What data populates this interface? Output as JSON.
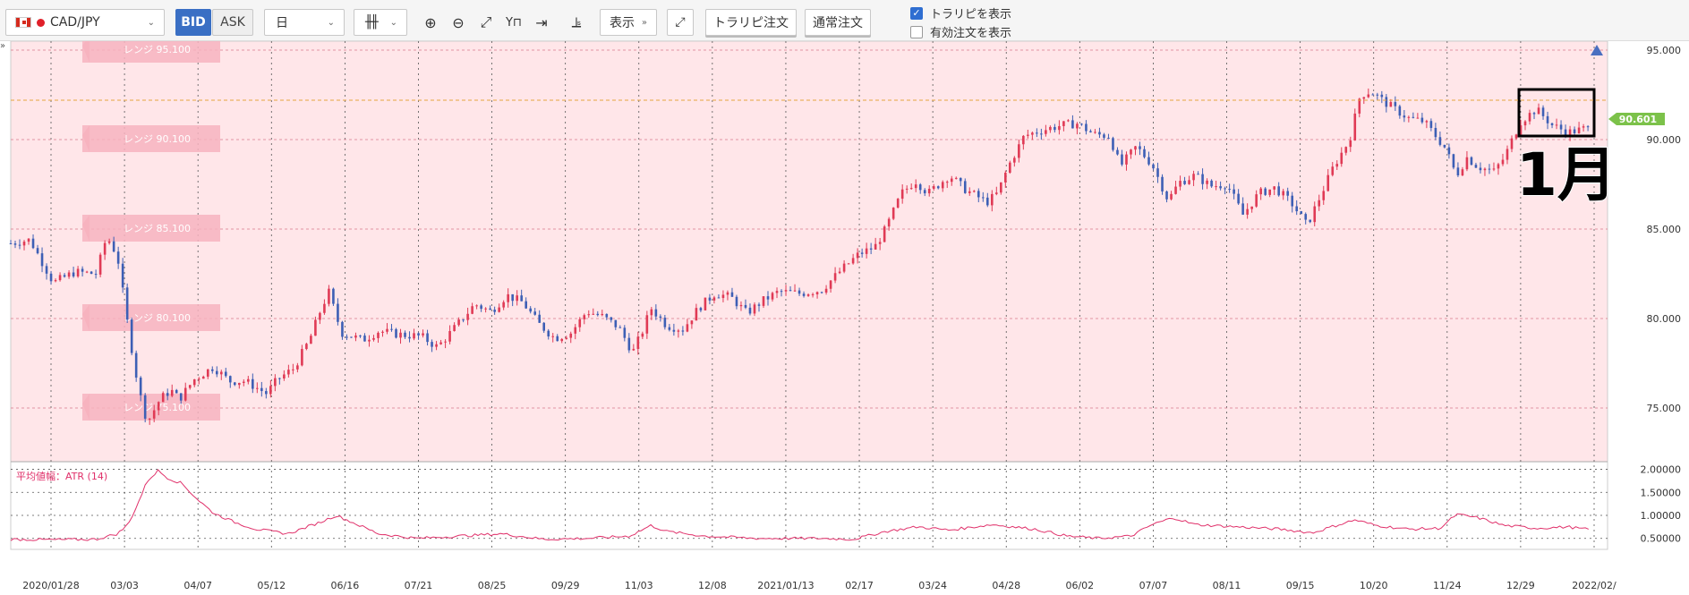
{
  "toolbar": {
    "pair": "CAD/JPY",
    "bid": "BID",
    "ask": "ASK",
    "period": "日",
    "show": "表示",
    "trap_order": "トラリピ注文",
    "normal_order": "通常注文",
    "show_trap": "トラリピを表示",
    "show_active": "有効注文を表示",
    "show_trap_checked": true,
    "show_active_checked": false,
    "icons": [
      "candlestick-icon",
      "zoom-in-icon",
      "zoom-out-icon",
      "fit-icon",
      "pin-icon",
      "jump-end-icon",
      "indicator-icon",
      "expand-icon"
    ]
  },
  "side_toggle": "»",
  "annotation": "1月",
  "chart_data": {
    "type": "candlestick",
    "main_yticks": [
      "95.000",
      "90.000",
      "85.000",
      "80.000",
      "75.000"
    ],
    "main_ylim": [
      72,
      95.5
    ],
    "current_price": "90.601",
    "ranges": [
      {
        "label": "レンジ 95.100",
        "price": 95.1
      },
      {
        "label": "レンジ 90.100",
        "price": 90.1
      },
      {
        "label": "レンジ 85.100",
        "price": 85.1
      },
      {
        "label": "レンジ 80.100",
        "price": 80.1
      },
      {
        "label": "レンジ 75.100",
        "price": 75.1
      }
    ],
    "xticks": [
      "2020/01/28",
      "03/03",
      "04/07",
      "05/12",
      "06/16",
      "07/21",
      "08/25",
      "09/29",
      "11/03",
      "12/08",
      "2021/01/13",
      "02/17",
      "03/24",
      "04/28",
      "06/02",
      "07/07",
      "08/11",
      "09/15",
      "10/20",
      "11/24",
      "12/29",
      "2022/02/"
    ],
    "price_path": [
      [
        0,
        84.2
      ],
      [
        18,
        84.4
      ],
      [
        40,
        82.0
      ],
      [
        60,
        82.6
      ],
      [
        80,
        82.5
      ],
      [
        90,
        84.6
      ],
      [
        100,
        83.5
      ],
      [
        110,
        79.5
      ],
      [
        120,
        76.0
      ],
      [
        128,
        74.2
      ],
      [
        140,
        75.5
      ],
      [
        150,
        76.0
      ],
      [
        158,
        75.5
      ],
      [
        172,
        76.6
      ],
      [
        190,
        77.3
      ],
      [
        205,
        76.5
      ],
      [
        220,
        76.5
      ],
      [
        240,
        75.8
      ],
      [
        250,
        76.6
      ],
      [
        265,
        77.2
      ],
      [
        280,
        78.8
      ],
      [
        290,
        80.4
      ],
      [
        298,
        81.5
      ],
      [
        310,
        79.2
      ],
      [
        330,
        78.8
      ],
      [
        345,
        79.3
      ],
      [
        365,
        79.1
      ],
      [
        385,
        79.0
      ],
      [
        400,
        78.4
      ],
      [
        415,
        79.4
      ],
      [
        435,
        80.8
      ],
      [
        450,
        80.4
      ],
      [
        465,
        81.3
      ],
      [
        480,
        80.9
      ],
      [
        495,
        79.7
      ],
      [
        510,
        78.9
      ],
      [
        525,
        79.2
      ],
      [
        540,
        80.4
      ],
      [
        555,
        80.1
      ],
      [
        570,
        79.5
      ],
      [
        583,
        78.1
      ],
      [
        593,
        79.4
      ],
      [
        600,
        80.6
      ],
      [
        615,
        79.6
      ],
      [
        630,
        79.4
      ],
      [
        645,
        80.6
      ],
      [
        660,
        81.4
      ],
      [
        675,
        81.2
      ],
      [
        690,
        80.3
      ],
      [
        705,
        81.0
      ],
      [
        720,
        81.5
      ],
      [
        740,
        81.4
      ],
      [
        760,
        81.6
      ],
      [
        780,
        82.8
      ],
      [
        795,
        83.6
      ],
      [
        810,
        84.0
      ],
      [
        820,
        85.0
      ],
      [
        835,
        87.0
      ],
      [
        848,
        87.7
      ],
      [
        860,
        87.0
      ],
      [
        880,
        88.0
      ],
      [
        895,
        87.2
      ],
      [
        915,
        86.5
      ],
      [
        925,
        87.0
      ],
      [
        935,
        88.5
      ],
      [
        950,
        90.2
      ],
      [
        965,
        90.5
      ],
      [
        985,
        90.8
      ],
      [
        1000,
        90.9
      ],
      [
        1015,
        90.3
      ],
      [
        1030,
        90.2
      ],
      [
        1040,
        88.5
      ],
      [
        1055,
        89.6
      ],
      [
        1070,
        88.6
      ],
      [
        1085,
        86.6
      ],
      [
        1095,
        87.6
      ],
      [
        1110,
        88.0
      ],
      [
        1125,
        87.4
      ],
      [
        1140,
        87.5
      ],
      [
        1155,
        85.8
      ],
      [
        1170,
        87.0
      ],
      [
        1185,
        87.3
      ],
      [
        1200,
        86.5
      ],
      [
        1215,
        85.2
      ],
      [
        1225,
        86.5
      ],
      [
        1240,
        88.5
      ],
      [
        1255,
        90.0
      ],
      [
        1265,
        92.5
      ],
      [
        1275,
        92.7
      ],
      [
        1290,
        92.0
      ],
      [
        1310,
        91.2
      ],
      [
        1325,
        91.0
      ],
      [
        1345,
        89.5
      ],
      [
        1355,
        88.0
      ],
      [
        1365,
        89.0
      ],
      [
        1375,
        88.5
      ],
      [
        1390,
        88.2
      ],
      [
        1400,
        89.0
      ],
      [
        1415,
        91.0
      ],
      [
        1430,
        91.7
      ],
      [
        1445,
        90.8
      ],
      [
        1460,
        90.4
      ],
      [
        1475,
        90.6
      ]
    ],
    "atr_label": "平均値幅：ATR (14)",
    "atr_yticks": [
      "2.00000",
      "1.50000",
      "1.00000",
      "0.50000"
    ],
    "atr_ylim": [
      0.3,
      2.05
    ],
    "atr_path": [
      [
        0,
        0.48
      ],
      [
        40,
        0.47
      ],
      [
        80,
        0.48
      ],
      [
        100,
        0.6
      ],
      [
        110,
        0.8
      ],
      [
        120,
        1.3
      ],
      [
        128,
        1.75
      ],
      [
        138,
        1.97
      ],
      [
        148,
        1.8
      ],
      [
        160,
        1.7
      ],
      [
        175,
        1.35
      ],
      [
        190,
        1.05
      ],
      [
        210,
        0.85
      ],
      [
        230,
        0.7
      ],
      [
        260,
        0.6
      ],
      [
        290,
        0.85
      ],
      [
        305,
        1.0
      ],
      [
        320,
        0.85
      ],
      [
        345,
        0.6
      ],
      [
        380,
        0.5
      ],
      [
        420,
        0.55
      ],
      [
        460,
        0.6
      ],
      [
        500,
        0.48
      ],
      [
        540,
        0.5
      ],
      [
        580,
        0.55
      ],
      [
        600,
        0.78
      ],
      [
        615,
        0.65
      ],
      [
        650,
        0.55
      ],
      [
        700,
        0.5
      ],
      [
        760,
        0.5
      ],
      [
        790,
        0.48
      ],
      [
        820,
        0.65
      ],
      [
        850,
        0.75
      ],
      [
        880,
        0.68
      ],
      [
        920,
        0.8
      ],
      [
        960,
        0.7
      ],
      [
        990,
        0.55
      ],
      [
        1020,
        0.5
      ],
      [
        1050,
        0.55
      ],
      [
        1070,
        0.8
      ],
      [
        1090,
        0.95
      ],
      [
        1110,
        0.8
      ],
      [
        1150,
        0.75
      ],
      [
        1190,
        0.7
      ],
      [
        1220,
        0.62
      ],
      [
        1245,
        0.8
      ],
      [
        1260,
        0.9
      ],
      [
        1280,
        0.78
      ],
      [
        1310,
        0.7
      ],
      [
        1340,
        0.72
      ],
      [
        1355,
        1.02
      ],
      [
        1375,
        0.95
      ],
      [
        1400,
        0.78
      ],
      [
        1430,
        0.72
      ],
      [
        1460,
        0.75
      ],
      [
        1475,
        0.7
      ]
    ]
  }
}
